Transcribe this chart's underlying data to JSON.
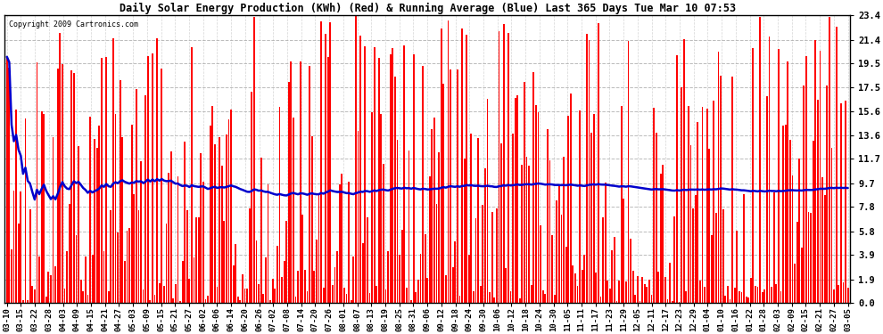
{
  "title": "Daily Solar Energy Production (KWh) (Red) & Running Average (Blue) Last 365 Days Tue Mar 10 07:53",
  "copyright": "Copyright 2009 Cartronics.com",
  "yticks": [
    0.0,
    1.9,
    3.9,
    5.8,
    7.8,
    9.7,
    11.7,
    13.6,
    15.6,
    17.5,
    19.5,
    21.4,
    23.4
  ],
  "bar_color": "#ff0000",
  "line_color": "#0000cc",
  "bg_color": "#ffffff",
  "grid_color": "#aaaaaa",
  "x_labels": [
    "03-10",
    "03-15",
    "03-22",
    "03-28",
    "04-03",
    "04-09",
    "04-15",
    "04-21",
    "04-27",
    "05-03",
    "05-09",
    "05-15",
    "05-21",
    "05-27",
    "06-02",
    "06-06",
    "06-14",
    "06-20",
    "06-26",
    "07-02",
    "07-08",
    "07-14",
    "07-20",
    "07-26",
    "08-01",
    "08-07",
    "08-13",
    "08-19",
    "08-25",
    "08-31",
    "09-06",
    "09-12",
    "09-18",
    "09-24",
    "09-30",
    "10-06",
    "10-12",
    "10-18",
    "10-24",
    "10-30",
    "11-05",
    "11-11",
    "11-17",
    "11-23",
    "11-29",
    "12-05",
    "12-11",
    "12-17",
    "12-23",
    "12-29",
    "01-04",
    "01-10",
    "01-16",
    "01-22",
    "01-28",
    "02-03",
    "02-09",
    "02-15",
    "02-21",
    "02-27",
    "03-05"
  ],
  "num_days": 365,
  "ylim": [
    0.0,
    23.4
  ]
}
